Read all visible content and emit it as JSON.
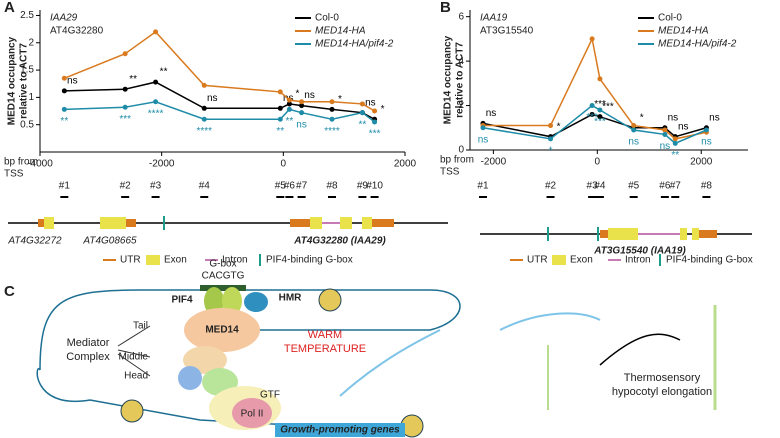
{
  "chart_data": [
    {
      "type": "line",
      "panel": "A",
      "gene": "IAA29",
      "locus": "AT4G32280",
      "ylabel": [
        "MED14 occupancy",
        "relative to ACT7"
      ],
      "xlabel": [
        "bp from",
        "TSS"
      ],
      "x": [
        -3600,
        -2600,
        -2100,
        -1300,
        -50,
        100,
        300,
        800,
        1300,
        1500
      ],
      "sites": [
        "#1",
        "#2",
        "#3",
        "#4",
        "#5",
        "#6",
        "#7",
        "#8",
        "#9",
        "#10"
      ],
      "xlim": [
        -4000,
        2000
      ],
      "xticks": [
        -4000,
        -2000,
        0,
        2000
      ],
      "ylim": [
        0,
        2.6
      ],
      "yticks": [
        0.5,
        1,
        1.5,
        2,
        2.5
      ],
      "series": [
        {
          "name": "Col-0",
          "color": "#000000",
          "values": [
            1.12,
            1.15,
            1.28,
            0.8,
            0.8,
            0.88,
            0.85,
            0.78,
            0.72,
            0.6
          ],
          "annotations": [
            "ns",
            "**",
            "**",
            "ns",
            "ns",
            "*",
            "ns",
            "*",
            "ns",
            "*"
          ]
        },
        {
          "name": "MED14-HA",
          "color": "#d97a1e",
          "values": [
            1.35,
            1.8,
            2.2,
            1.22,
            1.1,
            0.95,
            0.92,
            0.92,
            0.88,
            0.75
          ]
        },
        {
          "name": "MED14-HA/pif4-2",
          "color": "#1e8ca8",
          "values": [
            0.78,
            0.82,
            0.92,
            0.6,
            0.6,
            0.78,
            0.72,
            0.6,
            0.72,
            0.55
          ],
          "annotations": [
            "**",
            "***",
            "****",
            "****",
            "**",
            "**",
            "ns",
            "****",
            "**",
            "***"
          ]
        }
      ]
    },
    {
      "type": "line",
      "panel": "B",
      "gene": "IAA19",
      "locus": "AT3G15540",
      "ylabel": [
        "MED14 occupancy",
        "relative to ACT7"
      ],
      "xlabel": [
        "bp from",
        "TSS"
      ],
      "x": [
        -2200,
        -900,
        -100,
        50,
        700,
        1300,
        1500,
        2100
      ],
      "sites": [
        "#1",
        "#2",
        "#3",
        "#4",
        "#5",
        "#6",
        "#7",
        "#8"
      ],
      "xlim": [
        -2450,
        2900
      ],
      "xticks": [
        -2000,
        0,
        2000
      ],
      "ylim": [
        0,
        6.3
      ],
      "yticks": [
        0,
        2,
        4,
        6
      ],
      "series": [
        {
          "name": "Col-0",
          "color": "#000000",
          "values": [
            1.2,
            0.6,
            1.6,
            1.5,
            1.0,
            1.0,
            0.6,
            1.0
          ],
          "annotations": [
            "ns",
            "*",
            "***",
            "***",
            "*",
            "ns",
            "ns",
            "ns"
          ]
        },
        {
          "name": "MED14-HA",
          "color": "#d97a1e",
          "values": [
            1.1,
            1.1,
            5.0,
            3.2,
            1.1,
            0.9,
            0.5,
            0.8
          ]
        },
        {
          "name": "MED14-HA/pif4-2",
          "color": "#1e8ca8",
          "values": [
            1.0,
            0.5,
            2.0,
            1.8,
            0.9,
            0.7,
            0.3,
            0.9
          ],
          "annotations": [
            "ns",
            "*",
            "***",
            "***",
            "ns",
            "ns",
            "**",
            "ns"
          ]
        }
      ]
    }
  ],
  "gene_diagrams": {
    "a": {
      "genes": [
        "AT4G32272",
        "AT4G08665",
        "AT4G32280 (IAA29)"
      ]
    },
    "b": {
      "genes": [
        "AT3G15540 (IAA19)"
      ]
    },
    "legend": [
      "UTR",
      "Exon",
      "Intron",
      "PIF4-binding G-box"
    ]
  },
  "model": {
    "panel": "C",
    "gbox": [
      "G-box",
      "CACGTG"
    ],
    "pif4": "PIF4",
    "hmr": "HMR",
    "tail": "Tail",
    "med14": "MED14",
    "middle": "Middle",
    "head": "Head",
    "mediator": [
      "Mediator",
      "Complex"
    ],
    "warm": [
      "WARM",
      "TEMPERATURE"
    ],
    "gtf": "GTF",
    "pol2": "Pol II",
    "genes": "Growth-promoting genes",
    "outcome": [
      "Thermosensory",
      "hypocotyl elongation"
    ]
  }
}
